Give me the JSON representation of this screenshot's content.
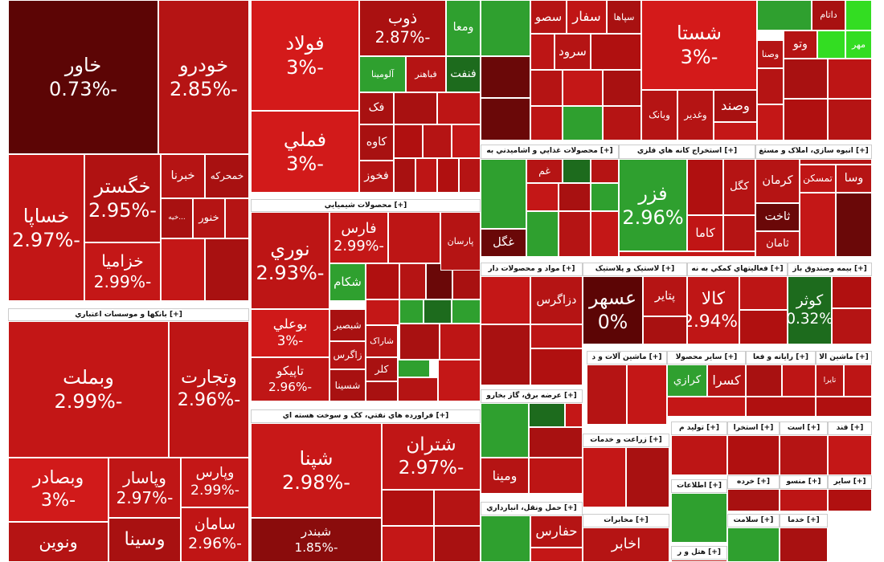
{
  "sectors": [
    {
      "tiles": [
        {
          "name": "خاور",
          "change": "-0.73%"
        },
        {
          "name": "خودرو",
          "change": "-2.85%"
        },
        {
          "name": "خساپا",
          "change": "-2.97%"
        },
        {
          "name": "خگستر",
          "change": "-2.95%"
        },
        {
          "name": "خزامیا",
          "change": "-2.99%"
        },
        {
          "name": "خبرنا"
        },
        {
          "name": "خمحرکه"
        },
        {
          "name": "...خیه"
        },
        {
          "name": "خنور"
        }
      ]
    },
    {
      "title": "[+] بانکها و موسسات اعتباري",
      "tiles": [
        {
          "name": "وبملت",
          "change": "-2.99%"
        },
        {
          "name": "وتجارت",
          "change": "-2.96%"
        },
        {
          "name": "وبصادر",
          "change": "-3%"
        },
        {
          "name": "وپاسار",
          "change": "-2.97%"
        },
        {
          "name": "وپارس",
          "change": "-2.99%"
        },
        {
          "name": "ونوین"
        },
        {
          "name": "وسینا"
        },
        {
          "name": "سامان",
          "change": "-2.96%"
        }
      ]
    },
    {
      "tiles": [
        {
          "name": "فولاد",
          "change": "-3%"
        },
        {
          "name": "فملي",
          "change": "-3%"
        },
        {
          "name": "ذوب",
          "change": "-2.87%"
        },
        {
          "name": "ومعا"
        },
        {
          "name": "آلومينا"
        },
        {
          "name": "فباهنر"
        },
        {
          "name": "فنفت"
        },
        {
          "name": "فک"
        },
        {
          "name": "کاوه"
        },
        {
          "name": "فخوز"
        }
      ]
    },
    {
      "title": "[+] محصولات شيميايي",
      "tiles": [
        {
          "name": "نوري",
          "change": "-2.93%"
        },
        {
          "name": "فارس",
          "change": "-2.99%"
        },
        {
          "name": "پارسان"
        },
        {
          "name": "شکام"
        },
        {
          "name": "بوعلي",
          "change": "-3%"
        },
        {
          "name": "تاپيکو",
          "change": "-2.96%"
        },
        {
          "name": "شبصير"
        },
        {
          "name": "زاگرس"
        },
        {
          "name": "شسينا"
        },
        {
          "name": "شاراک"
        },
        {
          "name": "کلر"
        }
      ]
    },
    {
      "title": "[+] فراورده هاي نفتي، کک و سوخت هسته اي",
      "tiles": [
        {
          "name": "شپنا",
          "change": "-2.98%"
        },
        {
          "name": "شبندر",
          "change": "-1.85%"
        },
        {
          "name": "شتران",
          "change": "-2.97%"
        }
      ]
    },
    {
      "tiles": [
        {
          "name": "سپاها"
        },
        {
          "name": "سفار"
        },
        {
          "name": "سصو"
        },
        {
          "name": "سرود"
        }
      ]
    },
    {
      "tiles": [
        {
          "name": "شستا",
          "change": "-3%"
        },
        {
          "name": "وبانک"
        },
        {
          "name": "وغدير"
        },
        {
          "name": "وصند"
        }
      ]
    },
    {
      "tiles": [
        {
          "name": "داتام"
        },
        {
          "name": "مهر"
        },
        {
          "name": "وتو"
        },
        {
          "name": "وصنا"
        }
      ]
    },
    {
      "title": "[+] محصولات غذايي و اشاميدني به",
      "tiles": [
        {
          "name": "غم"
        },
        {
          "name": "غگل"
        }
      ]
    },
    {
      "title": "[+] استخراج کانه هاي فلزي",
      "tiles": [
        {
          "name": "فزر",
          "change": "2.96%"
        },
        {
          "name": "کگل"
        },
        {
          "name": "کاما"
        }
      ]
    },
    {
      "title": "[+] انبوه سازي، املاک و مستغ",
      "tiles": [
        {
          "name": "کرمان"
        },
        {
          "name": "ثاخت"
        },
        {
          "name": "ثامان"
        },
        {
          "name": "تمسکن"
        },
        {
          "name": "وسا"
        }
      ]
    },
    {
      "title": "[+] مواد و محصولات دار",
      "tiles": [
        {
          "name": "دزاگرس"
        }
      ]
    },
    {
      "title": "[+] لاستيک و پلاستيک",
      "tiles": [
        {
          "name": "عسهر",
          "change": "0%"
        },
        {
          "name": "پتاير"
        }
      ]
    },
    {
      "title": "[+] فعاليتهاي کمکي به نه",
      "tiles": [
        {
          "name": "کالا",
          "change": "-2.94%"
        }
      ]
    },
    {
      "title": "[+] بيمه وصندوق باز",
      "tiles": [
        {
          "name": "کوثر",
          "change": "0.32%"
        }
      ]
    },
    {
      "title": "[+] ماشين آلات و د"
    },
    {
      "title": "[+] ساير محصولا",
      "tiles": [
        {
          "name": "کرازي"
        },
        {
          "name": "کسرا"
        }
      ]
    },
    {
      "title": "[+] رايانه و فعا"
    },
    {
      "title": "[+] ماشين الا",
      "tiles": [
        {
          "name": "تايرا"
        }
      ]
    },
    {
      "title": "[+] عرضه برق، گاز بخارو",
      "tiles": [
        {
          "name": "ومينا"
        }
      ]
    },
    {
      "title": "[+] حمل ونقل، انبارداري",
      "tiles": [
        {
          "name": "حفارس"
        }
      ]
    },
    {
      "title": "[+] زراعت و خدمات"
    },
    {
      "title": "[+] مخابرات",
      "tiles": [
        {
          "name": "اخابر"
        }
      ]
    },
    {
      "title": "[+] توليد م"
    },
    {
      "title": "[+] استخرا"
    },
    {
      "title": "[+] است"
    },
    {
      "title": "[+] قند"
    },
    {
      "title": "[+] خرده"
    },
    {
      "title": "[+] منسو"
    },
    {
      "title": "[+] ساير"
    },
    {
      "title": "[+] اطلاعات"
    },
    {
      "title": "[+] سلامت"
    },
    {
      "title": "[+] خدما"
    },
    {
      "title": "[+] هتل و ر"
    }
  ]
}
